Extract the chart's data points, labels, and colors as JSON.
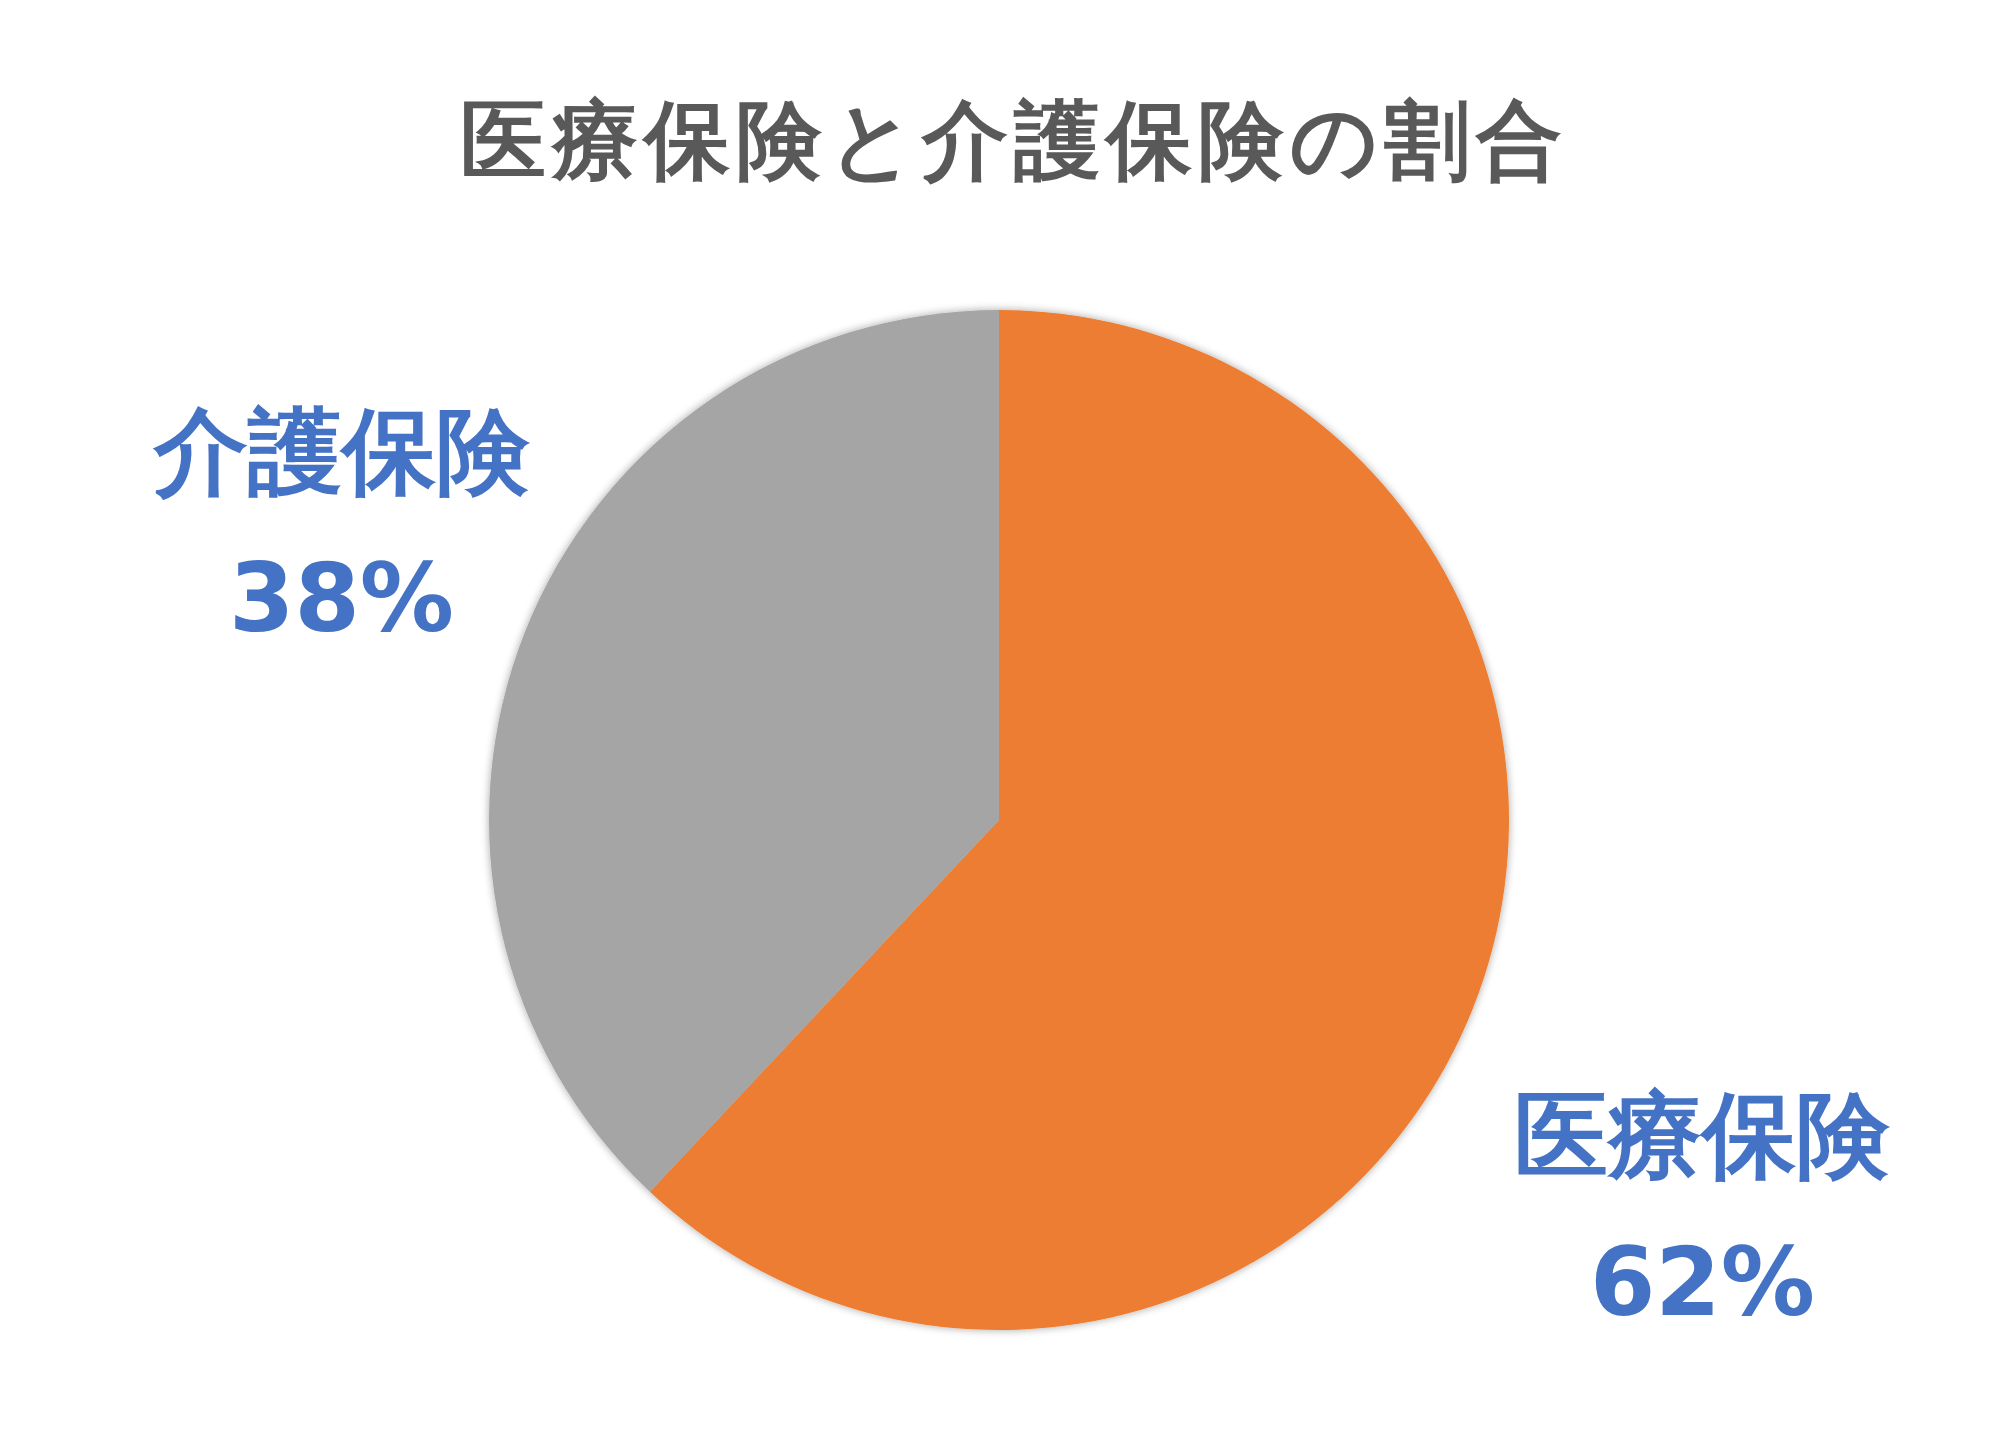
{
  "chart_data": {
    "type": "pie",
    "title": "医療保険と介護保険の割合",
    "categories": [
      "医療保険",
      "介護保険"
    ],
    "values": [
      62,
      38
    ],
    "colors": [
      "#ed7d31",
      "#a5a5a5"
    ],
    "value_labels": [
      "62%",
      "38%"
    ]
  }
}
